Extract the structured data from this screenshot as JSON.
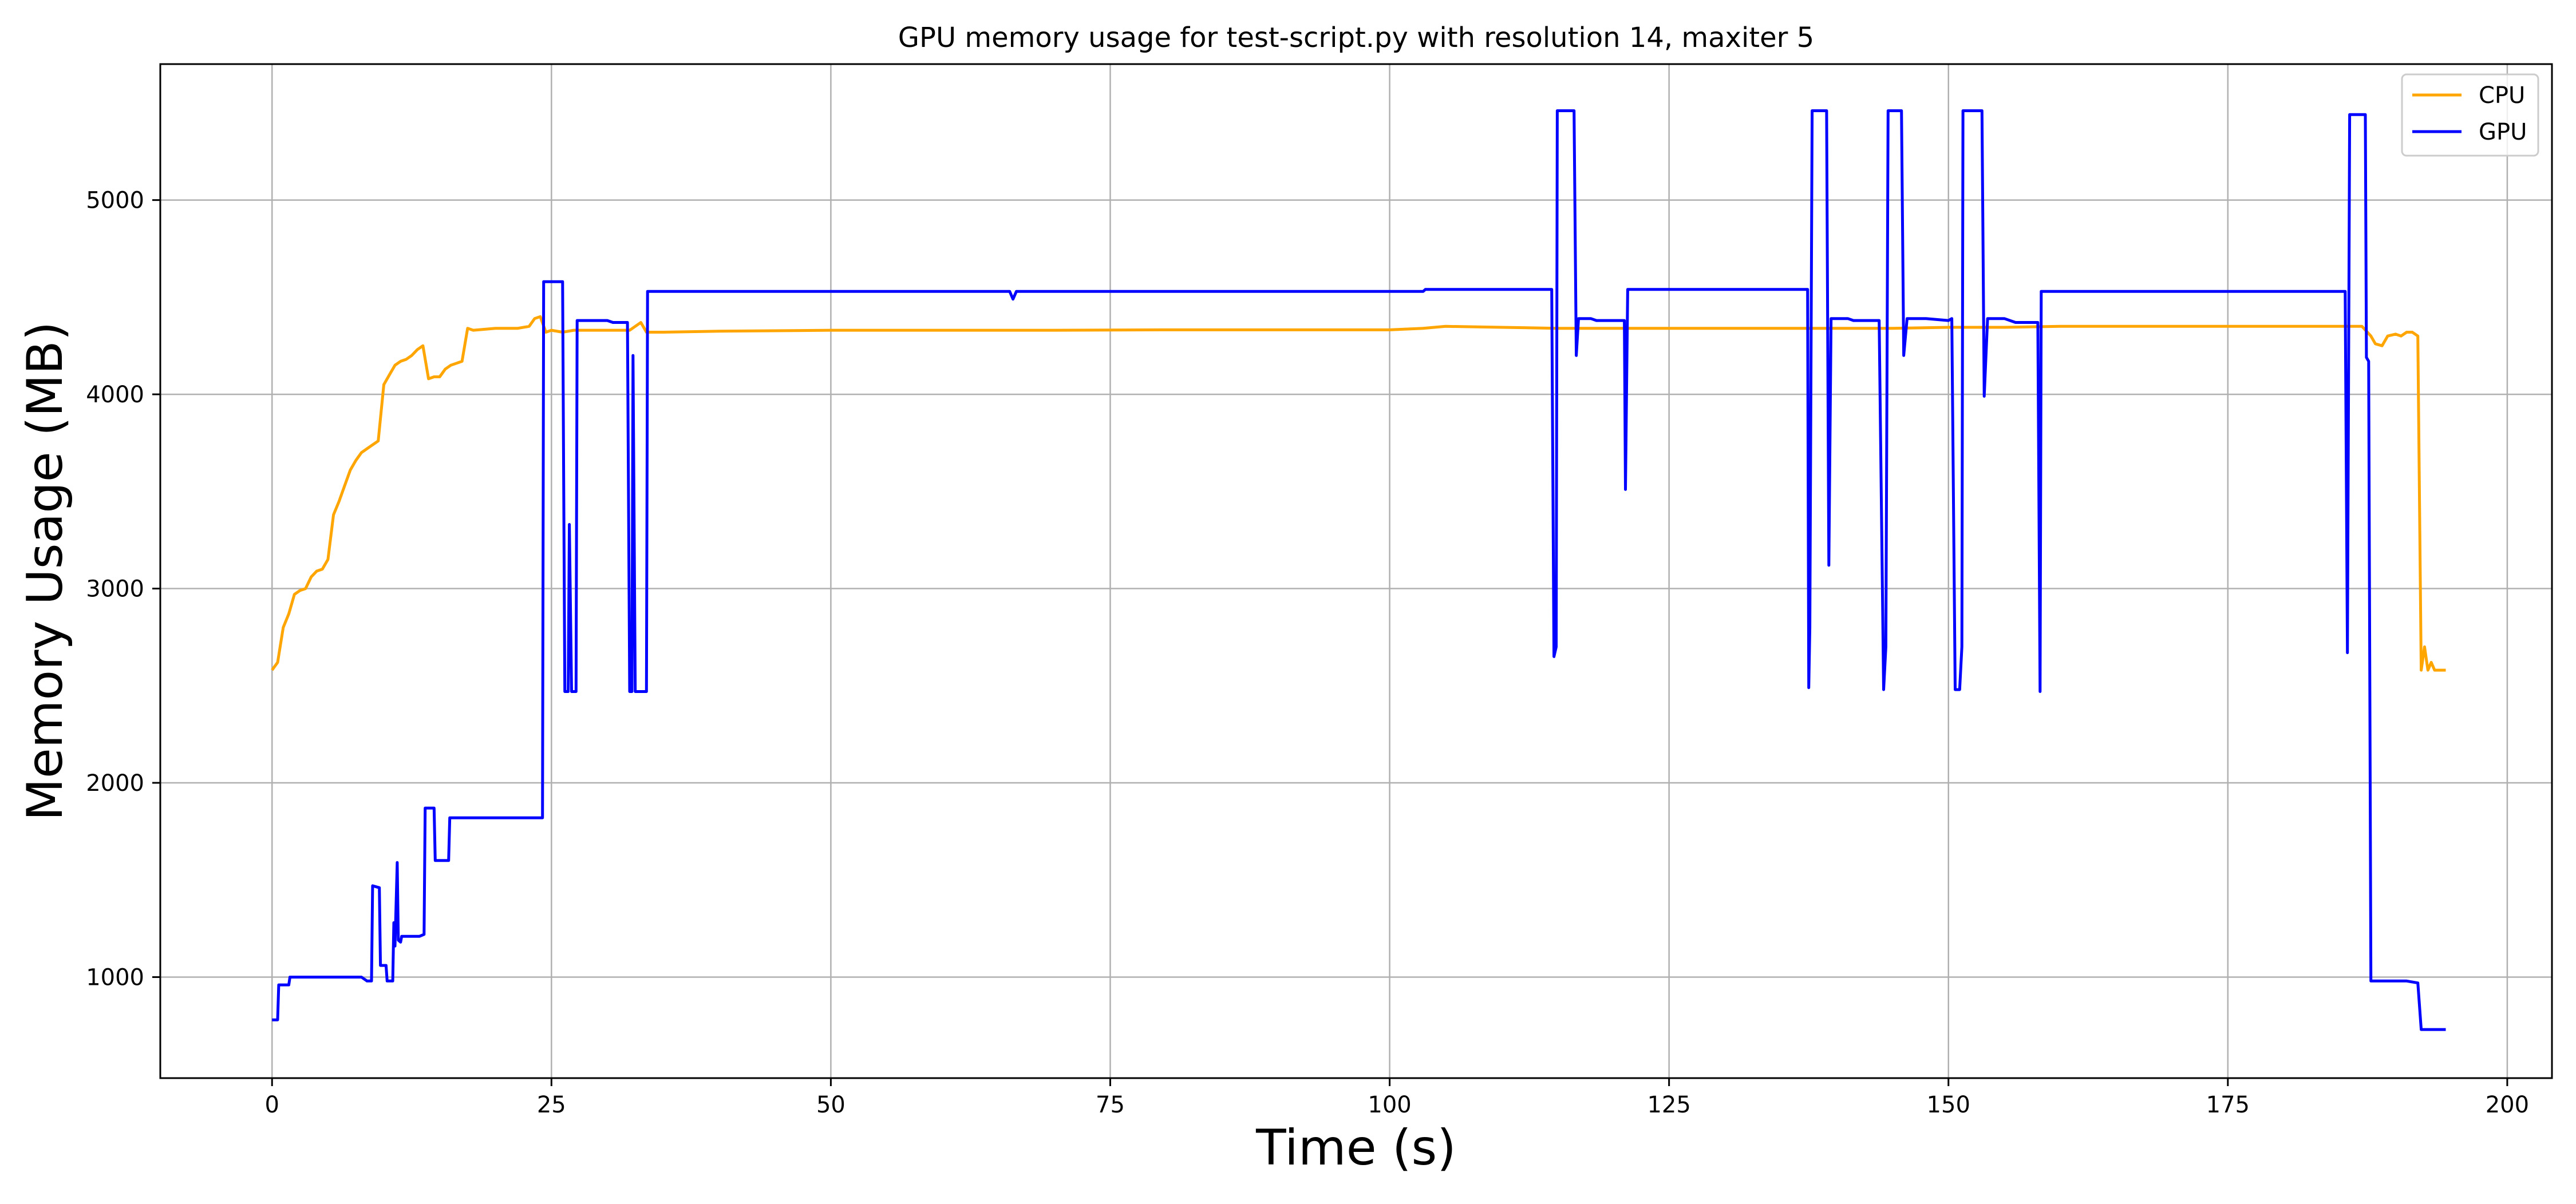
{
  "chart_data": {
    "type": "line",
    "title": "GPU memory usage for test-script.py with resolution 14, maxiter 5",
    "xlabel": "Time (s)",
    "ylabel": "Memory Usage (MB)",
    "xlim": [
      -10,
      204
    ],
    "ylim": [
      480,
      5700
    ],
    "xticks": [
      0,
      25,
      50,
      75,
      100,
      125,
      150,
      175,
      200
    ],
    "yticks": [
      1000,
      2000,
      3000,
      4000,
      5000
    ],
    "grid": true,
    "legend_position": "top-right",
    "series": [
      {
        "name": "CPU",
        "color": "#ffa500",
        "points": [
          [
            0,
            2580
          ],
          [
            0.5,
            2620
          ],
          [
            1,
            2800
          ],
          [
            1.5,
            2870
          ],
          [
            2,
            2970
          ],
          [
            2.5,
            2990
          ],
          [
            3,
            3000
          ],
          [
            3.5,
            3060
          ],
          [
            4,
            3090
          ],
          [
            4.5,
            3100
          ],
          [
            5,
            3150
          ],
          [
            5.5,
            3380
          ],
          [
            6,
            3450
          ],
          [
            6.5,
            3530
          ],
          [
            7,
            3610
          ],
          [
            7.5,
            3660
          ],
          [
            8,
            3700
          ],
          [
            8.5,
            3720
          ],
          [
            9,
            3740
          ],
          [
            9.5,
            3760
          ],
          [
            10,
            4050
          ],
          [
            10.5,
            4100
          ],
          [
            11,
            4150
          ],
          [
            11.5,
            4170
          ],
          [
            12,
            4180
          ],
          [
            12.5,
            4200
          ],
          [
            13,
            4230
          ],
          [
            13.5,
            4250
          ],
          [
            14,
            4080
          ],
          [
            14.5,
            4090
          ],
          [
            15,
            4090
          ],
          [
            15.5,
            4130
          ],
          [
            16,
            4150
          ],
          [
            16.5,
            4160
          ],
          [
            17,
            4170
          ],
          [
            17.5,
            4340
          ],
          [
            18,
            4330
          ],
          [
            20,
            4340
          ],
          [
            22,
            4340
          ],
          [
            23,
            4350
          ],
          [
            23.5,
            4390
          ],
          [
            24,
            4400
          ],
          [
            24.5,
            4320
          ],
          [
            25,
            4330
          ],
          [
            26,
            4320
          ],
          [
            27,
            4330
          ],
          [
            30,
            4330
          ],
          [
            32,
            4330
          ],
          [
            33,
            4370
          ],
          [
            33.5,
            4320
          ],
          [
            35,
            4320
          ],
          [
            40,
            4325
          ],
          [
            50,
            4330
          ],
          [
            60,
            4330
          ],
          [
            70,
            4330
          ],
          [
            80,
            4332
          ],
          [
            90,
            4332
          ],
          [
            100,
            4332
          ],
          [
            103,
            4340
          ],
          [
            105,
            4350
          ],
          [
            110,
            4345
          ],
          [
            115,
            4340
          ],
          [
            120,
            4340
          ],
          [
            125,
            4340
          ],
          [
            130,
            4340
          ],
          [
            135,
            4340
          ],
          [
            140,
            4340
          ],
          [
            145,
            4340
          ],
          [
            150,
            4345
          ],
          [
            155,
            4345
          ],
          [
            160,
            4350
          ],
          [
            165,
            4350
          ],
          [
            170,
            4350
          ],
          [
            175,
            4350
          ],
          [
            180,
            4350
          ],
          [
            185,
            4350
          ],
          [
            187,
            4350
          ],
          [
            187.8,
            4300
          ],
          [
            188.2,
            4260
          ],
          [
            188.8,
            4250
          ],
          [
            189.3,
            4300
          ],
          [
            190,
            4310
          ],
          [
            190.5,
            4300
          ],
          [
            191,
            4320
          ],
          [
            191.5,
            4320
          ],
          [
            192,
            4300
          ],
          [
            192.3,
            2580
          ],
          [
            192.6,
            2700
          ],
          [
            192.9,
            2580
          ],
          [
            193.2,
            2620
          ],
          [
            193.5,
            2580
          ],
          [
            194,
            2580
          ],
          [
            194.5,
            2580
          ]
        ]
      },
      {
        "name": "GPU",
        "color": "#0000ff",
        "points": [
          [
            0,
            780
          ],
          [
            0.5,
            780
          ],
          [
            0.6,
            960
          ],
          [
            1.5,
            960
          ],
          [
            1.6,
            1000
          ],
          [
            8,
            1000
          ],
          [
            8.5,
            980
          ],
          [
            8.9,
            980
          ],
          [
            9,
            1470
          ],
          [
            9.6,
            1460
          ],
          [
            9.7,
            1060
          ],
          [
            10.2,
            1060
          ],
          [
            10.3,
            980
          ],
          [
            10.8,
            980
          ],
          [
            10.9,
            1280
          ],
          [
            11,
            1160
          ],
          [
            11.2,
            1590
          ],
          [
            11.3,
            1190
          ],
          [
            11.5,
            1180
          ],
          [
            11.6,
            1210
          ],
          [
            13.2,
            1210
          ],
          [
            13.6,
            1220
          ],
          [
            13.7,
            1870
          ],
          [
            14.5,
            1870
          ],
          [
            14.6,
            1600
          ],
          [
            15.8,
            1600
          ],
          [
            15.9,
            1820
          ],
          [
            24.2,
            1820
          ],
          [
            24.3,
            4580
          ],
          [
            26,
            4580
          ],
          [
            26.2,
            2470
          ],
          [
            26.5,
            2470
          ],
          [
            26.6,
            3330
          ],
          [
            26.8,
            2470
          ],
          [
            27.2,
            2470
          ],
          [
            27.3,
            4380
          ],
          [
            30,
            4380
          ],
          [
            30.5,
            4370
          ],
          [
            31.8,
            4370
          ],
          [
            32,
            2470
          ],
          [
            32.2,
            2470
          ],
          [
            32.3,
            4200
          ],
          [
            32.5,
            2470
          ],
          [
            33.5,
            2470
          ],
          [
            33.6,
            4530
          ],
          [
            40,
            4530
          ],
          [
            50,
            4530
          ],
          [
            60,
            4530
          ],
          [
            66,
            4530
          ],
          [
            66.3,
            4490
          ],
          [
            66.6,
            4530
          ],
          [
            80,
            4530
          ],
          [
            90,
            4530
          ],
          [
            103,
            4530
          ],
          [
            103.2,
            4540
          ],
          [
            114,
            4540
          ],
          [
            114.5,
            4540
          ],
          [
            114.7,
            2650
          ],
          [
            114.9,
            2700
          ],
          [
            115,
            5460
          ],
          [
            116.5,
            5460
          ],
          [
            116.7,
            4200
          ],
          [
            116.9,
            4390
          ],
          [
            118,
            4390
          ],
          [
            118.5,
            4380
          ],
          [
            121,
            4380
          ],
          [
            121.1,
            3510
          ],
          [
            121.3,
            4540
          ],
          [
            137,
            4540
          ],
          [
            137.4,
            4540
          ],
          [
            137.5,
            2490
          ],
          [
            137.6,
            2800
          ],
          [
            137.8,
            5460
          ],
          [
            139.1,
            5460
          ],
          [
            139.3,
            3120
          ],
          [
            139.5,
            4390
          ],
          [
            141,
            4390
          ],
          [
            141.5,
            4380
          ],
          [
            143.8,
            4380
          ],
          [
            144.2,
            2480
          ],
          [
            144.4,
            2700
          ],
          [
            144.6,
            5460
          ],
          [
            145.8,
            5460
          ],
          [
            146,
            4200
          ],
          [
            146.3,
            4390
          ],
          [
            148,
            4390
          ],
          [
            150,
            4380
          ],
          [
            150.3,
            4390
          ],
          [
            150.6,
            2480
          ],
          [
            151,
            2480
          ],
          [
            151.2,
            2700
          ],
          [
            151.3,
            5460
          ],
          [
            153,
            5460
          ],
          [
            153.2,
            3990
          ],
          [
            153.5,
            4390
          ],
          [
            155,
            4390
          ],
          [
            156,
            4370
          ],
          [
            158,
            4370
          ],
          [
            158.2,
            2470
          ],
          [
            158.3,
            4530
          ],
          [
            170,
            4530
          ],
          [
            180,
            4530
          ],
          [
            185,
            4530
          ],
          [
            185.5,
            4530
          ],
          [
            185.7,
            2670
          ],
          [
            185.9,
            5440
          ],
          [
            187.3,
            5440
          ],
          [
            187.4,
            4190
          ],
          [
            187.6,
            4170
          ],
          [
            187.8,
            980
          ],
          [
            189,
            980
          ],
          [
            190,
            980
          ],
          [
            191,
            980
          ],
          [
            192,
            970
          ],
          [
            192.3,
            730
          ],
          [
            193,
            730
          ],
          [
            194,
            730
          ],
          [
            194.5,
            730
          ]
        ]
      }
    ]
  }
}
